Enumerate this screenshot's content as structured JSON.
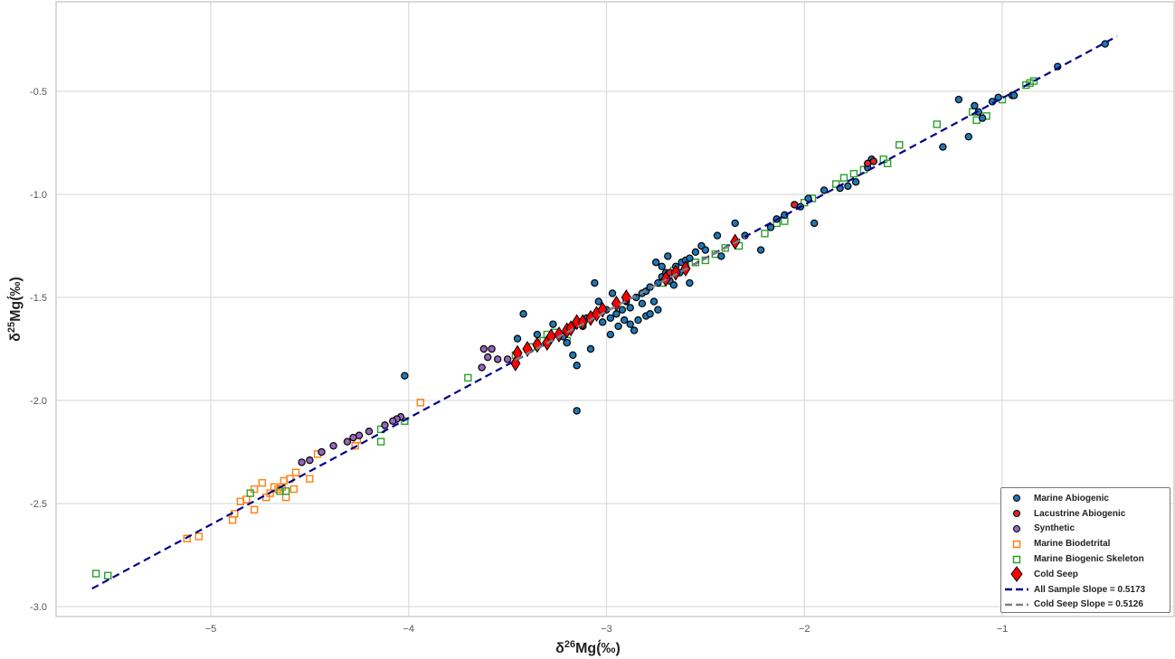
{
  "chart_data": {
    "type": "scatter",
    "title": "",
    "xlabel": "δ26Mg(‰)",
    "ylabel": "δ25Mg(‰)",
    "xlim": [
      -5.75,
      -0.25
    ],
    "ylim": [
      -3.05,
      -0.05
    ],
    "xticks": [
      -5,
      -4,
      -3,
      -2,
      -1
    ],
    "xtick_labels": [
      "−5",
      "−4",
      "−3",
      "−2",
      "−1"
    ],
    "yticks": [
      -0.5,
      -1.0,
      -1.5,
      -2.0,
      -2.5,
      -3.0
    ],
    "ytick_labels": [
      "-0.5",
      "-1.0",
      "-1.5",
      "-2.0",
      "-2.5",
      "-3.0"
    ],
    "grid": true,
    "legend_position": "lower right",
    "series": [
      {
        "name": "Marine Abiogenic",
        "marker": "circle",
        "color": "#1f77b4",
        "edge": "#000000",
        "points": [
          [
            -4.02,
            -1.88
          ],
          [
            -3.15,
            -2.05
          ],
          [
            -3.42,
            -1.58
          ],
          [
            -3.27,
            -1.63
          ],
          [
            -3.45,
            -1.7
          ],
          [
            -3.35,
            -1.68
          ],
          [
            -3.2,
            -1.72
          ],
          [
            -3.08,
            -1.75
          ],
          [
            -3.04,
            -1.52
          ],
          [
            -3.06,
            -1.43
          ],
          [
            -3.15,
            -1.83
          ],
          [
            -3.17,
            -1.78
          ],
          [
            -2.98,
            -1.6
          ],
          [
            -2.95,
            -1.58
          ],
          [
            -2.92,
            -1.56
          ],
          [
            -2.9,
            -1.52
          ],
          [
            -2.88,
            -1.55
          ],
          [
            -2.85,
            -1.5
          ],
          [
            -2.82,
            -1.48
          ],
          [
            -2.8,
            -1.47
          ],
          [
            -2.78,
            -1.45
          ],
          [
            -2.76,
            -1.52
          ],
          [
            -2.74,
            -1.43
          ],
          [
            -2.72,
            -1.4
          ],
          [
            -2.7,
            -1.38
          ],
          [
            -2.68,
            -1.42
          ],
          [
            -2.65,
            -1.35
          ],
          [
            -2.62,
            -1.33
          ],
          [
            -2.6,
            -1.32
          ],
          [
            -2.58,
            -1.31
          ],
          [
            -2.98,
            -1.68
          ],
          [
            -2.94,
            -1.64
          ],
          [
            -2.88,
            -1.63
          ],
          [
            -2.84,
            -1.61
          ],
          [
            -2.8,
            -1.59
          ],
          [
            -2.97,
            -1.48
          ],
          [
            -3.0,
            -1.56
          ],
          [
            -3.02,
            -1.62
          ],
          [
            -2.75,
            -1.33
          ],
          [
            -2.72,
            -1.35
          ],
          [
            -2.66,
            -1.44
          ],
          [
            -2.63,
            -1.38
          ],
          [
            -2.69,
            -1.3
          ],
          [
            -2.55,
            -1.28
          ],
          [
            -2.52,
            -1.25
          ],
          [
            -2.74,
            -1.56
          ],
          [
            -2.58,
            -1.43
          ],
          [
            -2.5,
            -1.27
          ],
          [
            -2.44,
            -1.2
          ],
          [
            -2.35,
            -1.14
          ],
          [
            -2.42,
            -1.3
          ],
          [
            -2.3,
            -1.2
          ],
          [
            -2.22,
            -1.27
          ],
          [
            -2.17,
            -1.16
          ],
          [
            -2.14,
            -1.12
          ],
          [
            -2.1,
            -1.1
          ],
          [
            -2.02,
            -1.06
          ],
          [
            -1.98,
            -1.02
          ],
          [
            -1.95,
            -1.14
          ],
          [
            -1.9,
            -0.98
          ],
          [
            -1.82,
            -0.97
          ],
          [
            -1.78,
            -0.96
          ],
          [
            -1.74,
            -0.94
          ],
          [
            -1.68,
            -0.87
          ],
          [
            -1.66,
            -0.83
          ],
          [
            -1.3,
            -0.77
          ],
          [
            -1.22,
            -0.54
          ],
          [
            -1.17,
            -0.72
          ],
          [
            -1.14,
            -0.57
          ],
          [
            -1.12,
            -0.6
          ],
          [
            -1.1,
            -0.63
          ],
          [
            -1.05,
            -0.55
          ],
          [
            -1.02,
            -0.53
          ],
          [
            -0.95,
            -0.52
          ],
          [
            -0.94,
            -0.52
          ],
          [
            -0.72,
            -0.38
          ],
          [
            -0.48,
            -0.27
          ],
          [
            -2.78,
            -1.58
          ],
          [
            -2.86,
            -1.66
          ],
          [
            -3.1,
            -1.6
          ],
          [
            -3.12,
            -1.64
          ],
          [
            -3.22,
            -1.69
          ],
          [
            -2.91,
            -1.61
          ],
          [
            -2.82,
            -1.53
          ]
        ]
      },
      {
        "name": "Lacustrine Abiogenic",
        "marker": "circle",
        "color": "#d62728",
        "edge": "#000000",
        "points": [
          [
            -1.68,
            -0.85
          ],
          [
            -1.65,
            -0.84
          ],
          [
            -2.05,
            -1.05
          ],
          [
            -2.68,
            -1.38
          ]
        ]
      },
      {
        "name": "Synthetic",
        "marker": "circle",
        "color": "#9467bd",
        "edge": "#000000",
        "points": [
          [
            -3.62,
            -1.75
          ],
          [
            -3.58,
            -1.75
          ],
          [
            -3.6,
            -1.79
          ],
          [
            -3.55,
            -1.8
          ],
          [
            -3.63,
            -1.84
          ],
          [
            -3.5,
            -1.8
          ],
          [
            -4.04,
            -2.08
          ],
          [
            -4.06,
            -2.09
          ],
          [
            -4.08,
            -2.1
          ],
          [
            -4.12,
            -2.12
          ],
          [
            -4.2,
            -2.15
          ],
          [
            -4.25,
            -2.17
          ],
          [
            -4.28,
            -2.18
          ],
          [
            -4.31,
            -2.2
          ],
          [
            -4.38,
            -2.22
          ],
          [
            -4.44,
            -2.25
          ],
          [
            -4.5,
            -2.29
          ],
          [
            -4.54,
            -2.3
          ]
        ]
      },
      {
        "name": "Marine Biodetrital",
        "marker": "square-open",
        "color": "#ff7f0e",
        "points": [
          [
            -3.94,
            -2.01
          ],
          [
            -4.26,
            -2.19
          ],
          [
            -4.27,
            -2.22
          ],
          [
            -4.46,
            -2.26
          ],
          [
            -4.5,
            -2.38
          ],
          [
            -4.57,
            -2.35
          ],
          [
            -4.58,
            -2.43
          ],
          [
            -4.6,
            -2.38
          ],
          [
            -4.63,
            -2.39
          ],
          [
            -4.64,
            -2.42
          ],
          [
            -4.66,
            -2.43
          ],
          [
            -4.68,
            -2.42
          ],
          [
            -4.7,
            -2.45
          ],
          [
            -4.72,
            -2.47
          ],
          [
            -4.74,
            -2.4
          ],
          [
            -4.78,
            -2.43
          ],
          [
            -4.82,
            -2.48
          ],
          [
            -4.78,
            -2.53
          ],
          [
            -4.85,
            -2.49
          ],
          [
            -4.88,
            -2.55
          ],
          [
            -4.89,
            -2.58
          ],
          [
            -4.62,
            -2.47
          ],
          [
            -5.12,
            -2.67
          ],
          [
            -5.06,
            -2.66
          ]
        ]
      },
      {
        "name": "Marine Biogenic Skeleton",
        "marker": "square-open",
        "color": "#2ca02c",
        "points": [
          [
            -5.58,
            -2.84
          ],
          [
            -5.52,
            -2.85
          ],
          [
            -4.65,
            -2.44
          ],
          [
            -4.62,
            -2.44
          ],
          [
            -4.8,
            -2.45
          ],
          [
            -4.14,
            -2.2
          ],
          [
            -4.14,
            -2.14
          ],
          [
            -4.02,
            -2.1
          ],
          [
            -3.7,
            -1.89
          ],
          [
            -3.46,
            -1.78
          ],
          [
            -3.38,
            -1.74
          ],
          [
            -3.32,
            -1.71
          ],
          [
            -3.3,
            -1.68
          ],
          [
            -3.26,
            -1.67
          ],
          [
            -3.2,
            -1.71
          ],
          [
            -3.12,
            -1.63
          ],
          [
            -2.72,
            -1.43
          ],
          [
            -2.66,
            -1.37
          ],
          [
            -2.6,
            -1.35
          ],
          [
            -2.55,
            -1.33
          ],
          [
            -2.5,
            -1.32
          ],
          [
            -2.45,
            -1.29
          ],
          [
            -2.4,
            -1.26
          ],
          [
            -2.33,
            -1.25
          ],
          [
            -2.2,
            -1.19
          ],
          [
            -2.14,
            -1.14
          ],
          [
            -2.1,
            -1.13
          ],
          [
            -2.0,
            -1.04
          ],
          [
            -1.96,
            -1.02
          ],
          [
            -1.84,
            -0.95
          ],
          [
            -1.8,
            -0.92
          ],
          [
            -1.75,
            -0.9
          ],
          [
            -1.7,
            -0.88
          ],
          [
            -1.6,
            -0.83
          ],
          [
            -1.58,
            -0.85
          ],
          [
            -1.52,
            -0.76
          ],
          [
            -1.33,
            -0.66
          ],
          [
            -1.15,
            -0.6
          ],
          [
            -1.13,
            -0.64
          ],
          [
            -1.08,
            -0.62
          ],
          [
            -1.0,
            -0.54
          ],
          [
            -0.88,
            -0.47
          ],
          [
            -0.86,
            -0.46
          ],
          [
            -0.84,
            -0.45
          ]
        ]
      },
      {
        "name": "Cold Seep",
        "marker": "diamond",
        "color": "#ff0000",
        "edge": "#000000",
        "points": [
          [
            -3.46,
            -1.82
          ],
          [
            -3.45,
            -1.77
          ],
          [
            -3.4,
            -1.75
          ],
          [
            -3.35,
            -1.73
          ],
          [
            -3.3,
            -1.72
          ],
          [
            -3.28,
            -1.69
          ],
          [
            -3.24,
            -1.68
          ],
          [
            -3.2,
            -1.66
          ],
          [
            -3.18,
            -1.65
          ],
          [
            -3.15,
            -1.62
          ],
          [
            -3.12,
            -1.62
          ],
          [
            -3.08,
            -1.6
          ],
          [
            -3.05,
            -1.58
          ],
          [
            -3.02,
            -1.56
          ],
          [
            -2.95,
            -1.53
          ],
          [
            -2.9,
            -1.5
          ],
          [
            -2.7,
            -1.41
          ],
          [
            -2.65,
            -1.38
          ],
          [
            -2.6,
            -1.36
          ],
          [
            -2.35,
            -1.23
          ]
        ]
      }
    ],
    "lines": [
      {
        "name": "All Sample Slope = 0.5173",
        "slope": 0.5173,
        "intercept": -0.016,
        "x_range": [
          -5.6,
          -0.42
        ],
        "color": "#00008b",
        "style": "dashed"
      },
      {
        "name": "Cold Seep Slope = 0.5126",
        "slope": 0.5126,
        "intercept": -0.03,
        "x_range": [
          -3.46,
          -2.3
        ],
        "color": "#808080",
        "style": "dashed"
      }
    ]
  },
  "legend": {
    "items": [
      {
        "label": "Marine Abiogenic"
      },
      {
        "label": "Lacustrine Abiogenic"
      },
      {
        "label": "Synthetic"
      },
      {
        "label": "Marine Biodetrital"
      },
      {
        "label": "Marine Biogenic Skeleton"
      },
      {
        "label": "Cold Seep"
      },
      {
        "label": "All Sample Slope = 0.5173"
      },
      {
        "label": "Cold Seep Slope = 0.5126"
      }
    ]
  },
  "axes": {
    "xlabel_main": "δ",
    "xlabel_sup": "26",
    "xlabel_rest": "Mg(́‰)",
    "ylabel_main": "δ",
    "ylabel_sup": "25",
    "ylabel_rest": "Mg(́‰)"
  }
}
